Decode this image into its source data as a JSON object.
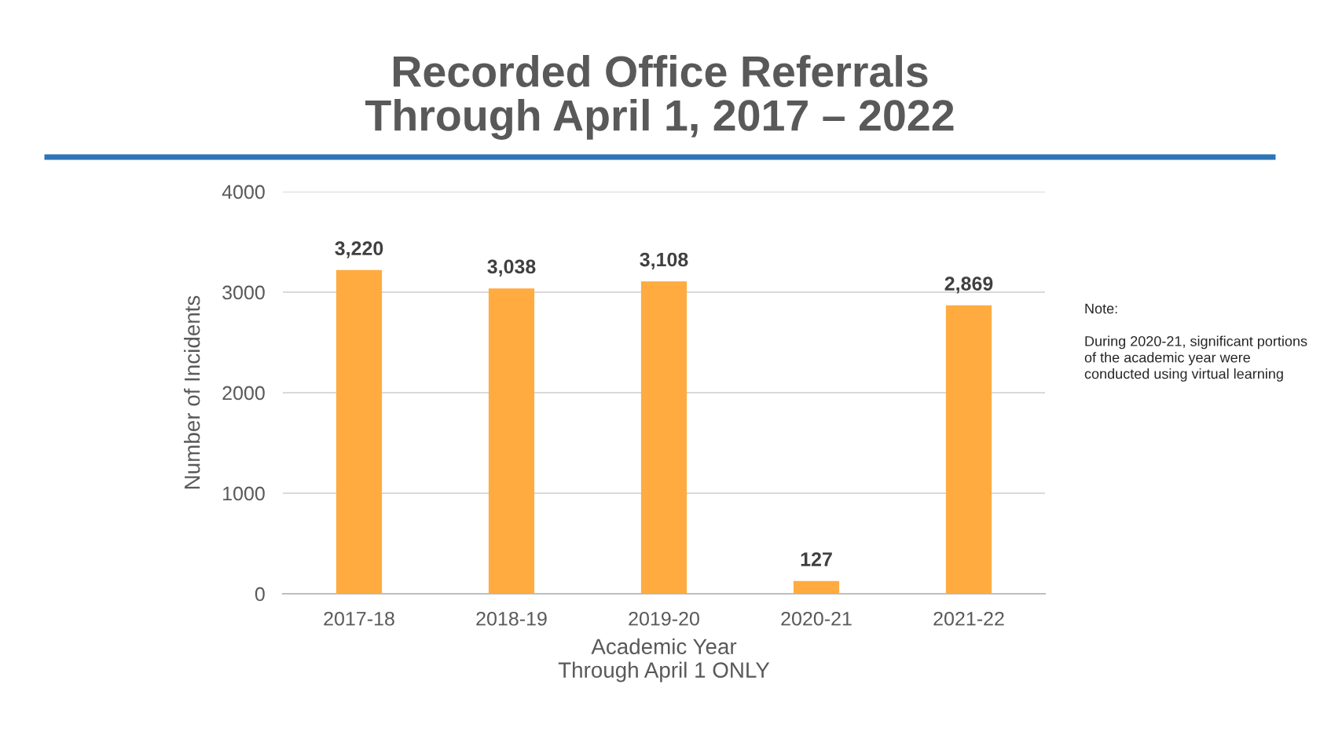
{
  "chart_data": {
    "type": "bar",
    "title": "Recorded Office Referrals\nThrough April 1, 2017 – 2022",
    "xlabel": "Academic Year\nThrough April 1 ONLY",
    "ylabel": "Number of Incidents",
    "categories": [
      "2017-18",
      "2018-19",
      "2019-20",
      "2020-21",
      "2021-22"
    ],
    "values": [
      3220,
      3038,
      3108,
      127,
      2869
    ],
    "color": "#ffab40",
    "data_labels": true,
    "value_labels": [
      "3,220",
      "3,038",
      "3,108",
      "127",
      "2,869"
    ],
    "ylim": [
      0,
      4000
    ],
    "yticks": [
      0,
      1000,
      2000,
      3000,
      4000
    ],
    "grid": "y",
    "legend": false,
    "annotations": [
      "Note:\n\nDuring 2020-21, significant portions\nof the academic year were\nconducted using virtual learning"
    ]
  }
}
